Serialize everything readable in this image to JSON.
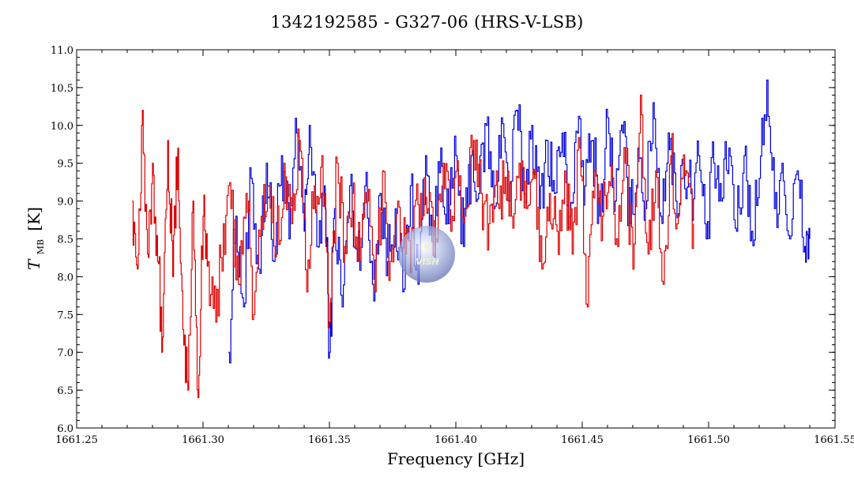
{
  "chart_data": {
    "type": "line",
    "title": "1342192585 - G327-06 (HRS-V-LSB)",
    "xlabel": "Frequency [GHz]",
    "ylabel_main": "T",
    "ylabel_sub": "MB",
    "ylabel_unit": "[K]",
    "xlim": [
      1661.25,
      1661.55
    ],
    "ylim": [
      6.0,
      11.0
    ],
    "x_ticks": [
      {
        "value": 1661.25,
        "label": "1661.25"
      },
      {
        "value": 1661.3,
        "label": "1661.30"
      },
      {
        "value": 1661.35,
        "label": "1661.35"
      },
      {
        "value": 1661.4,
        "label": "1661.40"
      },
      {
        "value": 1661.45,
        "label": "1661.45"
      },
      {
        "value": 1661.5,
        "label": "1661.50"
      },
      {
        "value": 1661.55,
        "label": "1661.55"
      }
    ],
    "y_ticks": [
      {
        "value": 6.0,
        "label": "6.0"
      },
      {
        "value": 6.5,
        "label": "6.5"
      },
      {
        "value": 7.0,
        "label": "7.0"
      },
      {
        "value": 7.5,
        "label": "7.5"
      },
      {
        "value": 8.0,
        "label": "8.0"
      },
      {
        "value": 8.5,
        "label": "8.5"
      },
      {
        "value": 9.0,
        "label": "9.0"
      },
      {
        "value": 9.5,
        "label": "9.5"
      },
      {
        "value": 10.0,
        "label": "10.0"
      },
      {
        "value": 10.5,
        "label": "10.5"
      },
      {
        "value": 11.0,
        "label": "11.0"
      }
    ],
    "grid": false,
    "legend": "none",
    "series": [
      {
        "color": "#0000dd",
        "x": [
          1661.31,
          1661.313,
          1661.316,
          1661.319,
          1661.322,
          1661.325,
          1661.328,
          1661.331,
          1661.334,
          1661.337,
          1661.34,
          1661.342,
          1661.345,
          1661.348,
          1661.35,
          1661.352,
          1661.355,
          1661.358,
          1661.361,
          1661.364,
          1661.367,
          1661.37,
          1661.373,
          1661.376,
          1661.379,
          1661.382,
          1661.385,
          1661.388,
          1661.391,
          1661.394,
          1661.397,
          1661.4,
          1661.403,
          1661.406,
          1661.409,
          1661.412,
          1661.415,
          1661.418,
          1661.421,
          1661.424,
          1661.427,
          1661.43,
          1661.433,
          1661.436,
          1661.439,
          1661.442,
          1661.445,
          1661.448,
          1661.451,
          1661.454,
          1661.457,
          1661.46,
          1661.463,
          1661.466,
          1661.469,
          1661.472,
          1661.475,
          1661.478,
          1661.481,
          1661.484,
          1661.487,
          1661.49,
          1661.493,
          1661.496,
          1661.499,
          1661.502,
          1661.505,
          1661.508,
          1661.511,
          1661.514,
          1661.517,
          1661.52,
          1661.523,
          1661.526,
          1661.529,
          1661.532,
          1661.535,
          1661.538,
          1661.54
        ],
        "values": [
          7.0,
          8.8,
          7.6,
          9.3,
          8.1,
          9.5,
          8.2,
          9.6,
          8.5,
          9.9,
          8.6,
          10.0,
          8.4,
          9.2,
          7.0,
          8.9,
          7.6,
          9.2,
          8.2,
          9.2,
          7.9,
          9.1,
          8.2,
          8.9,
          7.8,
          9.2,
          7.9,
          9.6,
          8.3,
          9.7,
          8.7,
          9.6,
          8.4,
          9.6,
          9.1,
          10.0,
          8.9,
          10.1,
          9.0,
          10.2,
          9.1,
          10.0,
          8.9,
          9.8,
          9.1,
          9.9,
          8.8,
          9.9,
          9.2,
          9.8,
          8.8,
          10.1,
          9.0,
          9.9,
          8.7,
          9.7,
          8.9,
          10.3,
          8.8,
          9.9,
          9.0,
          9.5,
          9.1,
          9.6,
          8.5,
          9.5,
          9.0,
          9.7,
          8.6,
          9.6,
          8.6,
          9.3,
          10.6,
          8.9,
          9.5,
          8.5,
          9.4,
          8.4,
          8.5
        ]
      },
      {
        "color": "#dd0000",
        "x": [
          1661.272,
          1661.274,
          1661.276,
          1661.278,
          1661.28,
          1661.282,
          1661.284,
          1661.286,
          1661.288,
          1661.29,
          1661.292,
          1661.294,
          1661.296,
          1661.298,
          1661.3,
          1661.302,
          1661.305,
          1661.308,
          1661.311,
          1661.314,
          1661.317,
          1661.32,
          1661.323,
          1661.326,
          1661.329,
          1661.332,
          1661.335,
          1661.338,
          1661.341,
          1661.344,
          1661.347,
          1661.35,
          1661.353,
          1661.356,
          1661.359,
          1661.362,
          1661.365,
          1661.368,
          1661.371,
          1661.374,
          1661.377,
          1661.38,
          1661.383,
          1661.386,
          1661.389,
          1661.392,
          1661.395,
          1661.398,
          1661.401,
          1661.404,
          1661.407,
          1661.41,
          1661.413,
          1661.416,
          1661.419,
          1661.422,
          1661.425,
          1661.428,
          1661.431,
          1661.434,
          1661.437,
          1661.44,
          1661.443,
          1661.446,
          1661.449,
          1661.452,
          1661.455,
          1661.458,
          1661.461,
          1661.464,
          1661.467,
          1661.47,
          1661.473,
          1661.476,
          1661.479,
          1661.482,
          1661.485,
          1661.488,
          1661.491,
          1661.494
        ],
        "values": [
          9.0,
          8.1,
          10.2,
          8.3,
          9.5,
          8.2,
          7.2,
          9.8,
          8.0,
          9.7,
          7.3,
          6.5,
          9.0,
          6.4,
          8.8,
          8.2,
          7.4,
          8.7,
          8.9,
          7.9,
          9.1,
          7.5,
          8.8,
          9.2,
          8.3,
          9.5,
          8.7,
          9.8,
          7.8,
          9.2,
          9.6,
          7.4,
          9.5,
          8.4,
          9.1,
          8.2,
          9.0,
          7.8,
          9.4,
          8.2,
          9.0,
          8.3,
          8.6,
          9.1,
          8.9,
          8.5,
          9.5,
          8.6,
          9.2,
          8.9,
          9.8,
          9.1,
          8.7,
          9.4,
          9.1,
          8.8,
          9.5,
          8.9,
          9.3,
          8.1,
          9.1,
          8.6,
          9.4,
          8.3,
          9.7,
          7.6,
          9.4,
          8.8,
          9.2,
          8.4,
          9.5,
          8.1,
          10.4,
          8.3,
          9.4,
          7.9,
          9.6,
          8.8,
          9.4,
          8.7
        ]
      }
    ]
  },
  "watermark": {
    "text": "VISH",
    "bubble_color": "#7080c0",
    "star_color": "#f4f1c8"
  }
}
